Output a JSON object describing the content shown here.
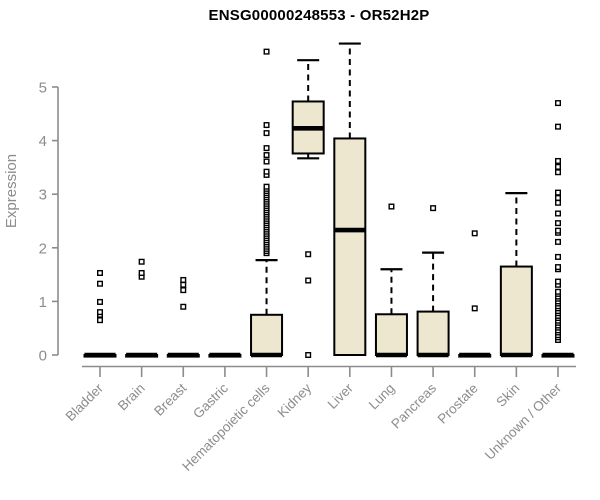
{
  "chart_data": {
    "type": "boxplot",
    "title": "ENSG00000248553 - OR52H2P",
    "ylabel": "Expression",
    "yticks": [
      0,
      1,
      2,
      3,
      4,
      5
    ],
    "ylim": [
      -0.2,
      6.0
    ],
    "grid": false,
    "legend": "none",
    "categories": [
      "Bladder",
      "Brain",
      "Breast",
      "Gastric",
      "Hematopoietic cells",
      "Kidney",
      "Liver",
      "Lung",
      "Pancreas",
      "Prostate",
      "Skin",
      "Unknown / Other"
    ],
    "boxes": [
      {
        "category": "Bladder",
        "q1": 0,
        "median": 0,
        "q3": 0,
        "whisker_low": 0,
        "whisker_high": 0,
        "outliers": [
          0.65,
          0.75,
          0.8,
          0.99,
          1.33,
          1.53
        ]
      },
      {
        "category": "Brain",
        "q1": 0,
        "median": 0,
        "q3": 0,
        "whisker_low": 0,
        "whisker_high": 0,
        "outliers": [
          1.46,
          1.53,
          1.74
        ]
      },
      {
        "category": "Breast",
        "q1": 0,
        "median": 0,
        "q3": 0,
        "whisker_low": 0,
        "whisker_high": 0,
        "outliers": [
          0.9,
          1.21,
          1.31,
          1.4
        ]
      },
      {
        "category": "Gastric",
        "q1": 0,
        "median": 0,
        "q3": 0,
        "whisker_low": 0,
        "whisker_high": 0,
        "outliers": []
      },
      {
        "category": "Hematopoietic cells",
        "q1": 0,
        "median": 0,
        "q3": 0.75,
        "whisker_low": 0,
        "whisker_high": 1.77,
        "outliers": [
          1.9,
          1.94,
          1.98,
          2.02,
          2.06,
          2.1,
          2.14,
          2.18,
          2.22,
          2.26,
          2.3,
          2.34,
          2.38,
          2.42,
          2.46,
          2.5,
          2.54,
          2.58,
          2.62,
          2.66,
          2.7,
          2.74,
          2.78,
          2.82,
          2.86,
          2.9,
          2.94,
          2.98,
          3.02,
          3.06,
          3.1,
          3.14,
          3.36,
          3.42,
          3.61,
          3.73,
          3.86,
          4.14,
          4.29,
          5.66
        ]
      },
      {
        "category": "Kidney",
        "q1": 3.76,
        "median": 4.23,
        "q3": 4.73,
        "whisker_low": 3.67,
        "whisker_high": 5.5,
        "outliers": [
          0.0,
          1.39,
          1.88
        ]
      },
      {
        "category": "Liver",
        "q1": 0,
        "median": 2.33,
        "q3": 4.04,
        "whisker_low": 0,
        "whisker_high": 5.81,
        "outliers": []
      },
      {
        "category": "Lung",
        "q1": 0,
        "median": 0,
        "q3": 0.76,
        "whisker_low": 0,
        "whisker_high": 1.6,
        "outliers": [
          2.77
        ]
      },
      {
        "category": "Pancreas",
        "q1": 0,
        "median": 0,
        "q3": 0.81,
        "whisker_low": 0,
        "whisker_high": 1.91,
        "outliers": [
          2.74
        ]
      },
      {
        "category": "Prostate",
        "q1": 0,
        "median": 0,
        "q3": 0,
        "whisker_low": 0,
        "whisker_high": 0,
        "outliers": [
          0.87,
          2.27
        ]
      },
      {
        "category": "Skin",
        "q1": 0,
        "median": 0,
        "q3": 1.65,
        "whisker_low": 0,
        "whisker_high": 3.02,
        "outliers": []
      },
      {
        "category": "Unknown / Other",
        "q1": 0,
        "median": 0,
        "q3": 0,
        "whisker_low": 0,
        "whisker_high": 0,
        "outliers": [
          0.28,
          0.33,
          0.37,
          0.42,
          0.46,
          0.51,
          0.55,
          0.6,
          0.64,
          0.69,
          0.73,
          0.78,
          0.82,
          0.87,
          0.91,
          0.96,
          1.0,
          1.05,
          1.09,
          1.14,
          1.18,
          1.31,
          1.37,
          1.6,
          1.64,
          1.83,
          2.11,
          2.28,
          2.32,
          2.46,
          2.64,
          2.84,
          2.93,
          3.03,
          3.41,
          3.51,
          3.62,
          4.26,
          4.7
        ]
      }
    ],
    "colors": {
      "box_fill": "#EDE7CF",
      "box_stroke": "#000000",
      "median": "#000000",
      "whisker": "#000000",
      "outlier_stroke": "#000000",
      "outlier_fill": "#FFFFFF",
      "axis": "#8C8C8C",
      "axis_text": "#8C8C8C",
      "title_text": "#000000",
      "background": "#FFFFFF"
    }
  }
}
